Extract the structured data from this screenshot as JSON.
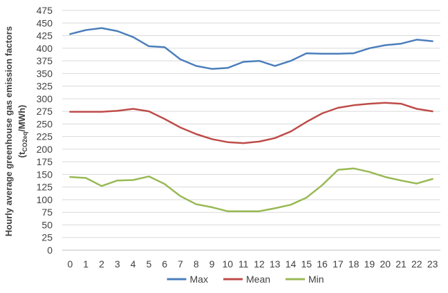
{
  "chart_data": {
    "type": "line",
    "title": "",
    "ylabel_main": "Hourly average greenhouse gas emission factors",
    "ylabel_unit_open": "(t",
    "ylabel_unit_sub": "CO2eq",
    "ylabel_unit_close": "/MWh)",
    "xlabel": "",
    "x": [
      0,
      1,
      2,
      3,
      4,
      5,
      6,
      7,
      8,
      9,
      10,
      11,
      12,
      13,
      14,
      15,
      16,
      17,
      18,
      19,
      20,
      21,
      22,
      23
    ],
    "ylim": [
      0,
      475
    ],
    "ytick_step": 25,
    "grid": "horizontal",
    "legend_position": "bottom",
    "series": [
      {
        "name": "Max",
        "color": "#4a7ebb",
        "values": [
          428,
          436,
          440,
          434,
          422,
          404,
          402,
          378,
          365,
          359,
          361,
          373,
          375,
          365,
          375,
          390,
          389,
          389,
          390,
          400,
          406,
          409,
          417,
          414
        ]
      },
      {
        "name": "Mean",
        "color": "#be4b48",
        "values": [
          274,
          274,
          274,
          276,
          280,
          275,
          260,
          243,
          230,
          220,
          214,
          212,
          215,
          222,
          235,
          254,
          271,
          282,
          287,
          290,
          292,
          290,
          280,
          275
        ]
      },
      {
        "name": "Min",
        "color": "#98b954",
        "values": [
          145,
          143,
          127,
          138,
          139,
          146,
          131,
          107,
          91,
          85,
          77,
          77,
          77,
          83,
          90,
          104,
          129,
          159,
          162,
          155,
          145,
          138,
          132,
          141
        ]
      }
    ]
  }
}
